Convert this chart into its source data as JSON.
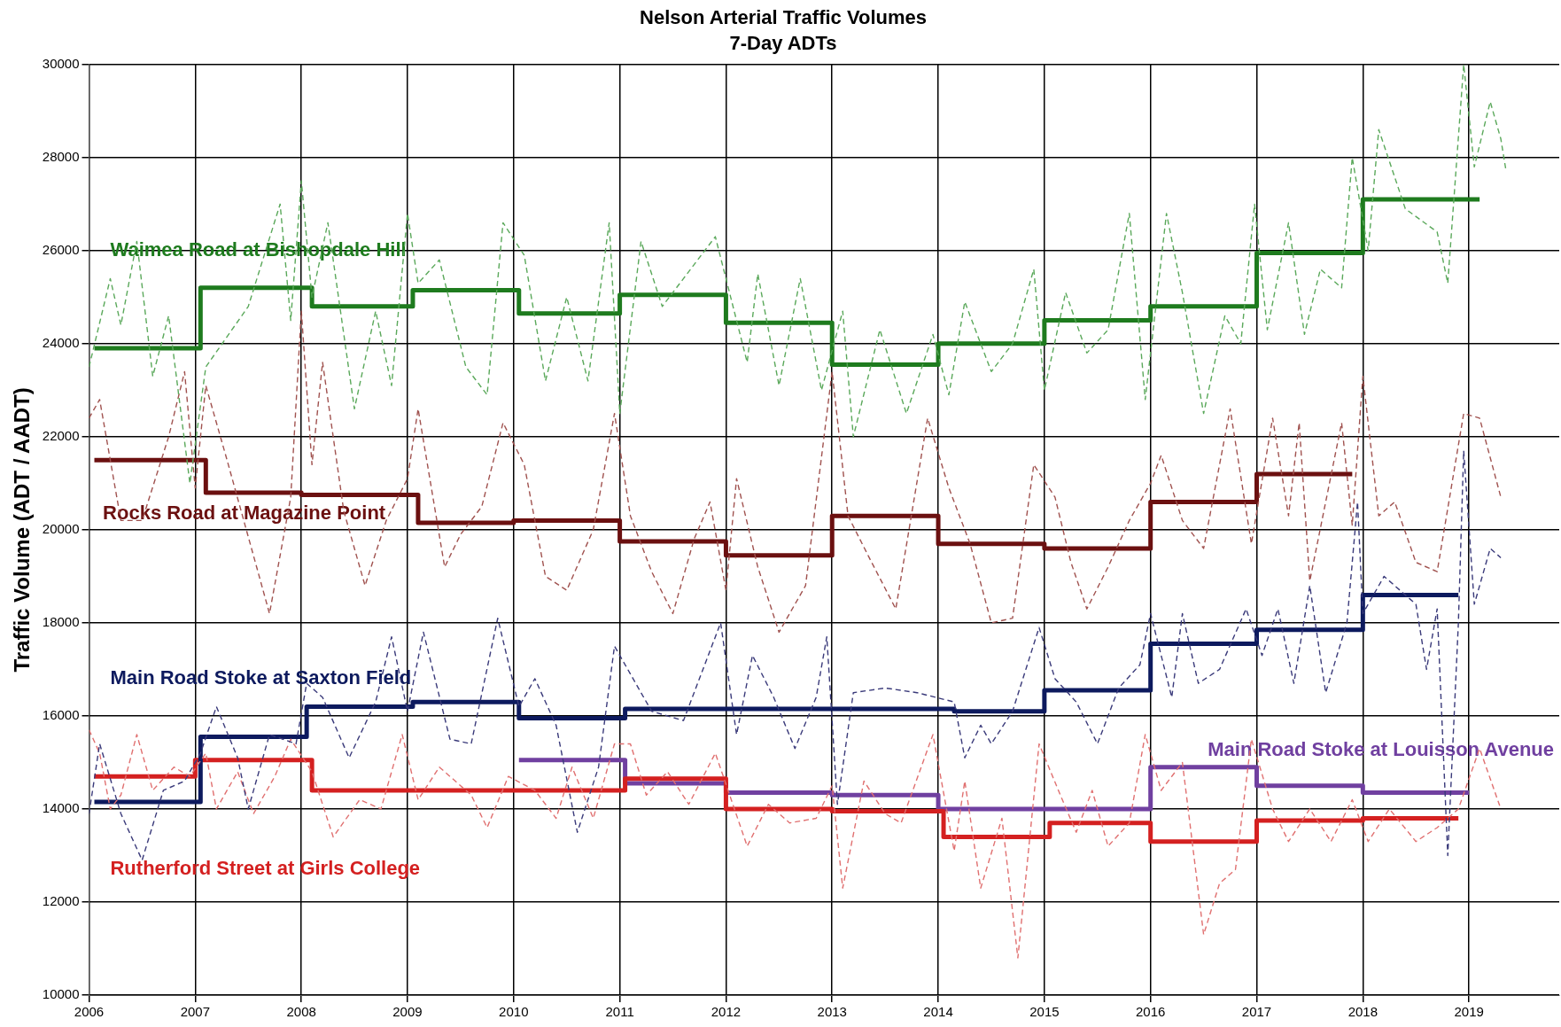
{
  "chart_data": {
    "type": "line",
    "title": "Nelson Arterial Traffic Volumes",
    "subtitle": "7-Day ADTs",
    "ylabel": "Traffic Volume (ADT / AADT)",
    "xlim": [
      2006,
      2019.85
    ],
    "xticks": [
      2006,
      2007,
      2008,
      2009,
      2010,
      2011,
      2012,
      2013,
      2014,
      2015,
      2016,
      2017,
      2018,
      2019
    ],
    "ylim": [
      10000,
      30000
    ],
    "yticks": [
      10000,
      12000,
      14000,
      16000,
      18000,
      20000,
      22000,
      24000,
      26000,
      28000,
      30000
    ],
    "grid": true,
    "legend": false,
    "marker": "none",
    "series": [
      {
        "type": "line",
        "line_style": "dashed",
        "color": "#5aa85a",
        "x": [
          2006.0,
          2006.2,
          2006.3,
          2006.45,
          2006.6,
          2006.75,
          2006.95,
          2007.1,
          2007.5,
          2007.8,
          2007.9,
          2008.0,
          2008.1,
          2008.25,
          2008.5,
          2008.7,
          2008.85,
          2009.0,
          2009.1,
          2009.3,
          2009.55,
          2009.75,
          2009.9,
          2010.1,
          2010.3,
          2010.5,
          2010.7,
          2010.9,
          2011.0,
          2011.2,
          2011.4,
          2011.6,
          2011.9,
          2012.2,
          2012.3,
          2012.5,
          2012.7,
          2012.9,
          2013.1,
          2013.2,
          2013.45,
          2013.7,
          2013.95,
          2014.1,
          2014.25,
          2014.5,
          2014.7,
          2014.9,
          2015.0,
          2015.2,
          2015.4,
          2015.6,
          2015.8,
          2015.95,
          2016.15,
          2016.3,
          2016.5,
          2016.7,
          2016.85,
          2016.98,
          2017.1,
          2017.3,
          2017.45,
          2017.6,
          2017.8,
          2017.9,
          2018.05,
          2018.15,
          2018.4,
          2018.7,
          2018.8,
          2018.95,
          2019.05,
          2019.2,
          2019.3,
          2019.35
        ],
        "values": [
          23500,
          25400,
          24400,
          26200,
          23300,
          24600,
          21000,
          23500,
          24800,
          27000,
          24500,
          27500,
          25000,
          26600,
          22600,
          24700,
          23100,
          26800,
          25300,
          25800,
          23500,
          22900,
          26600,
          25900,
          23200,
          25000,
          23200,
          26600,
          22500,
          26200,
          24800,
          25400,
          26300,
          23600,
          25500,
          23100,
          25400,
          23000,
          24700,
          22000,
          24300,
          22500,
          24200,
          22900,
          24900,
          23400,
          24000,
          25600,
          23000,
          25100,
          23800,
          24300,
          26800,
          22800,
          26800,
          25100,
          22500,
          24600,
          24000,
          27000,
          24300,
          26600,
          24200,
          25600,
          25200,
          28000,
          26000,
          28600,
          26900,
          26400,
          25300,
          30000,
          27800,
          29200,
          28400,
          27700
        ]
      },
      {
        "type": "line",
        "line_style": "dashed",
        "color": "#a0524f",
        "x": [
          2006.0,
          2006.1,
          2006.3,
          2006.5,
          2006.75,
          2006.9,
          2007.0,
          2007.1,
          2007.3,
          2007.7,
          2007.9,
          2008.0,
          2008.1,
          2008.2,
          2008.4,
          2008.6,
          2008.8,
          2009.0,
          2009.1,
          2009.35,
          2009.5,
          2009.7,
          2009.9,
          2010.1,
          2010.3,
          2010.5,
          2010.75,
          2010.95,
          2011.1,
          2011.3,
          2011.5,
          2011.7,
          2011.85,
          2012.0,
          2012.1,
          2012.3,
          2012.5,
          2012.75,
          2013.0,
          2013.15,
          2013.35,
          2013.6,
          2013.9,
          2014.1,
          2014.3,
          2014.5,
          2014.7,
          2014.9,
          2015.1,
          2015.25,
          2015.4,
          2015.6,
          2015.8,
          2016.0,
          2016.1,
          2016.3,
          2016.5,
          2016.75,
          2016.95,
          2017.15,
          2017.3,
          2017.4,
          2017.5,
          2017.8,
          2017.9,
          2018.0,
          2018.15,
          2018.3,
          2018.5,
          2018.7,
          2018.95,
          2019.1,
          2019.3
        ],
        "values": [
          22400,
          22800,
          20200,
          20200,
          22000,
          23400,
          20900,
          23100,
          21500,
          18200,
          20700,
          24700,
          21400,
          23600,
          20400,
          18800,
          20200,
          21100,
          22600,
          19200,
          19900,
          20500,
          22300,
          21400,
          19000,
          18700,
          20000,
          22500,
          20300,
          19100,
          18200,
          19800,
          20600,
          18700,
          21100,
          19200,
          17800,
          18800,
          23400,
          20300,
          19400,
          18300,
          22400,
          20900,
          19700,
          18000,
          18100,
          21400,
          20700,
          19300,
          18300,
          19200,
          20200,
          21000,
          21600,
          20200,
          19600,
          22600,
          19700,
          22400,
          20300,
          22300,
          18900,
          22300,
          20100,
          23300,
          20300,
          20600,
          19300,
          19100,
          22500,
          22400,
          20700
        ]
      },
      {
        "type": "line",
        "line_style": "dashed",
        "color": "#3a3a7a",
        "x": [
          2006.0,
          2006.1,
          2006.3,
          2006.5,
          2006.7,
          2006.9,
          2007.05,
          2007.2,
          2007.4,
          2007.5,
          2007.7,
          2007.95,
          2008.05,
          2008.2,
          2008.45,
          2008.7,
          2008.85,
          2009.0,
          2009.15,
          2009.4,
          2009.6,
          2009.85,
          2010.05,
          2010.2,
          2010.4,
          2010.6,
          2010.8,
          2010.95,
          2011.1,
          2011.3,
          2011.6,
          2011.95,
          2012.1,
          2012.25,
          2012.45,
          2012.65,
          2012.85,
          2012.95,
          2013.05,
          2013.2,
          2013.5,
          2013.8,
          2014.15,
          2014.25,
          2014.4,
          2014.5,
          2014.7,
          2014.95,
          2015.1,
          2015.3,
          2015.5,
          2015.7,
          2015.9,
          2016.0,
          2016.2,
          2016.3,
          2016.45,
          2016.65,
          2016.9,
          2017.05,
          2017.2,
          2017.35,
          2017.5,
          2017.65,
          2017.85,
          2017.95,
          2018.0,
          2018.2,
          2018.5,
          2018.6,
          2018.7,
          2018.8,
          2018.9,
          2018.95,
          2019.05,
          2019.2,
          2019.3
        ],
        "values": [
          13900,
          15400,
          13900,
          12900,
          14400,
          14600,
          15200,
          16200,
          15100,
          14000,
          15600,
          15400,
          16700,
          16400,
          15100,
          16300,
          17700,
          16100,
          17800,
          15500,
          15400,
          18100,
          16200,
          16800,
          15800,
          13500,
          14900,
          17500,
          16900,
          16100,
          15900,
          18000,
          15600,
          17300,
          16400,
          15300,
          16400,
          17700,
          14100,
          16500,
          16600,
          16500,
          16300,
          15100,
          15800,
          15400,
          16100,
          17900,
          16800,
          16300,
          15400,
          16600,
          17100,
          18200,
          16400,
          18200,
          16700,
          17000,
          18300,
          17300,
          18300,
          16700,
          18800,
          16500,
          18000,
          20600,
          18200,
          19000,
          18400,
          17000,
          18300,
          13000,
          18000,
          21700,
          18400,
          19600,
          19400
        ]
      },
      {
        "type": "line",
        "line_style": "dashed",
        "color": "#e07070",
        "x": [
          2006.0,
          2006.1,
          2006.2,
          2006.3,
          2006.45,
          2006.6,
          2006.8,
          2006.95,
          2007.1,
          2007.2,
          2007.4,
          2007.55,
          2007.75,
          2007.9,
          2008.1,
          2008.3,
          2008.55,
          2008.75,
          2008.95,
          2009.1,
          2009.3,
          2009.6,
          2009.75,
          2009.95,
          2010.2,
          2010.4,
          2010.55,
          2010.75,
          2010.95,
          2011.1,
          2011.25,
          2011.45,
          2011.65,
          2011.9,
          2012.05,
          2012.2,
          2012.4,
          2012.6,
          2012.85,
          2013.0,
          2013.1,
          2013.3,
          2013.5,
          2013.65,
          2013.95,
          2014.15,
          2014.25,
          2014.4,
          2014.6,
          2014.75,
          2014.95,
          2015.15,
          2015.3,
          2015.45,
          2015.6,
          2015.8,
          2015.95,
          2016.1,
          2016.3,
          2016.5,
          2016.65,
          2016.8,
          2016.95,
          2017.15,
          2017.3,
          2017.5,
          2017.7,
          2017.9,
          2018.05,
          2018.25,
          2018.5,
          2018.7,
          2018.9,
          2019.1,
          2019.3
        ],
        "values": [
          15700,
          15200,
          14000,
          14300,
          15600,
          14400,
          14900,
          14700,
          15200,
          14000,
          14800,
          13900,
          14700,
          15500,
          14800,
          13400,
          14200,
          14000,
          15600,
          14200,
          14900,
          14300,
          13600,
          14700,
          14400,
          13800,
          14900,
          13800,
          15400,
          15400,
          14300,
          14800,
          14100,
          15200,
          14200,
          13200,
          14100,
          13700,
          13800,
          14500,
          12300,
          14600,
          13900,
          13700,
          15600,
          13100,
          14600,
          12300,
          13800,
          10800,
          15400,
          14300,
          13500,
          14400,
          13200,
          13700,
          15600,
          14400,
          15000,
          11300,
          12400,
          12700,
          15500,
          14000,
          13300,
          14000,
          13300,
          14200,
          13300,
          14000,
          13300,
          13600,
          14000,
          15300,
          14000
        ]
      },
      {
        "type": "step",
        "line_style": "solid",
        "name": "Waimea Road at Bishopdale Hill",
        "color": "#1e7b1e",
        "x": [
          2006.05,
          2007.05,
          2008.1,
          2009.05,
          2010.05,
          2011.0,
          2012.0,
          2013.0,
          2014.0,
          2015.0,
          2016.0,
          2017.0,
          2018.0,
          2019.1
        ],
        "values": [
          23900,
          25200,
          24800,
          25150,
          24650,
          25050,
          24450,
          23550,
          24000,
          24500,
          24800,
          25950,
          27100,
          27100
        ]
      },
      {
        "type": "step",
        "line_style": "solid",
        "name": "Rocks Road at Magazine Point",
        "color": "#6b1010",
        "x": [
          2006.05,
          2007.1,
          2008.0,
          2009.1,
          2010.0,
          2011.0,
          2012.0,
          2013.0,
          2014.0,
          2015.0,
          2016.0,
          2017.0,
          2017.9
        ],
        "values": [
          21500,
          20800,
          20750,
          20150,
          20200,
          19750,
          19450,
          20300,
          19700,
          19600,
          20600,
          21200,
          21200
        ]
      },
      {
        "type": "step",
        "line_style": "solid",
        "name": "Main Road Stoke at Saxton Field",
        "color": "#0d1a5e",
        "x": [
          2006.05,
          2007.05,
          2008.05,
          2009.05,
          2010.05,
          2011.05,
          2014.15,
          2015.0,
          2016.0,
          2017.0,
          2018.0,
          2018.9
        ],
        "values": [
          14150,
          15550,
          16200,
          16300,
          15950,
          16150,
          16100,
          16550,
          17550,
          17850,
          18600,
          18600
        ]
      },
      {
        "type": "step",
        "line_style": "solid",
        "name": "Rutherford Street at Girls College",
        "color": "#d42020",
        "x": [
          2006.05,
          2007.0,
          2008.1,
          2011.05,
          2012.0,
          2013.0,
          2014.05,
          2015.05,
          2016.0,
          2017.0,
          2018.0,
          2018.9
        ],
        "values": [
          14700,
          15050,
          14400,
          14650,
          14000,
          13950,
          13400,
          13700,
          13300,
          13750,
          13800,
          13800
        ]
      },
      {
        "type": "step",
        "line_style": "solid",
        "name": "Main Road Stoke at Louisson Avenue",
        "color": "#7040a0",
        "x": [
          2010.05,
          2011.05,
          2012.0,
          2013.0,
          2014.0,
          2016.0,
          2017.0,
          2018.0,
          2019.0
        ],
        "values": [
          15050,
          14550,
          14350,
          14300,
          14000,
          14900,
          14500,
          14350,
          14350
        ]
      }
    ]
  }
}
